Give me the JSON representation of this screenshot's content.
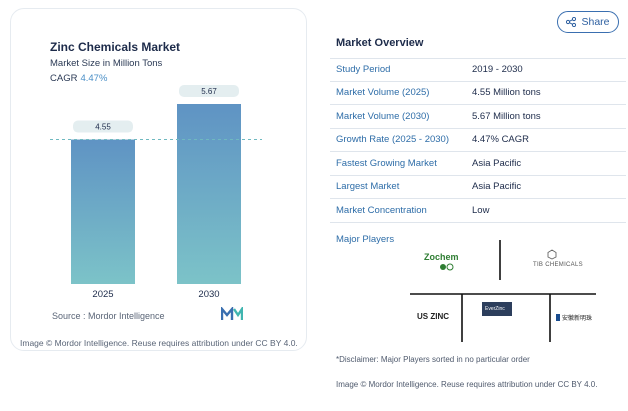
{
  "chart": {
    "title": "Zinc Chemicals Market",
    "subtitle": "Market Size in Million Tons",
    "cagr_label": "CAGR",
    "cagr_value": "4.47%",
    "source": "Source :  Mordor Intelligence",
    "caption": "Image © Mordor Intelligence. Reuse requires attribution under CC BY 4.0."
  },
  "chart_data": {
    "type": "bar",
    "categories": [
      "2025",
      "2030"
    ],
    "values": [
      4.55,
      5.67
    ],
    "value_labels": [
      "4.55",
      "5.67"
    ],
    "title": "Zinc Chemicals Market",
    "subtitle": "Market Size in Million Tons",
    "ylim": [
      0,
      6.3
    ],
    "bar_color_top": "#5f93c4",
    "bar_color_bottom": "#7cc3c8",
    "reference_line": true
  },
  "share": {
    "label": "Share"
  },
  "overview": {
    "title": "Market Overview",
    "rows": [
      {
        "label": "Study Period",
        "value": "2019 - 2030"
      },
      {
        "label": "Market Volume (2025)",
        "value": "4.55 Million tons"
      },
      {
        "label": "Market Volume (2030)",
        "value": "5.67 Million tons"
      },
      {
        "label": "Growth Rate (2025 - 2030)",
        "value": "4.47% CAGR"
      },
      {
        "label": "Fastest Growing Market",
        "value": "Asia Pacific"
      },
      {
        "label": "Largest Market",
        "value": "Asia Pacific"
      },
      {
        "label": "Market Concentration",
        "value": "Low"
      }
    ]
  },
  "players": {
    "label": "Major Players",
    "logos": [
      {
        "name": "Zochem"
      },
      {
        "name": "TIB CHEMICALS"
      },
      {
        "name": "US ZINC"
      },
      {
        "name": "EverZinc"
      },
      {
        "name": "安徽新明珠"
      }
    ],
    "disclaimer": "*Disclaimer: Major Players sorted in no particular order",
    "caption": "Image © Mordor Intelligence. Reuse requires attribution under CC BY 4.0."
  },
  "colors": {
    "accent": "#2e6da8",
    "brand": "#1d2b4a"
  }
}
